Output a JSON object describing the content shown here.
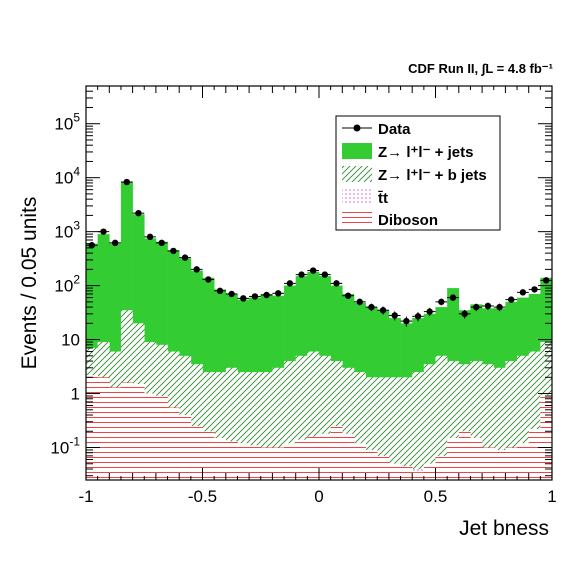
{
  "header": "CDF Run II, ∫L = 4.8 fb⁻¹",
  "chart_data": {
    "type": "area",
    "xlabel": "Jet bness",
    "ylabel": "Events / 0.05 units",
    "xlim": [
      -1,
      1
    ],
    "ylim": [
      0.025,
      500000
    ],
    "log_y": true,
    "grid": false,
    "legend_position": "top-right",
    "x_ticks": [
      {
        "value": -1,
        "label": "-1"
      },
      {
        "value": -0.5,
        "label": "-0.5"
      },
      {
        "value": 0,
        "label": "0"
      },
      {
        "value": 0.5,
        "label": "0.5"
      },
      {
        "value": 1,
        "label": "1"
      }
    ],
    "y_ticks": [
      {
        "value": 0.1,
        "base": "10",
        "exp": "-1"
      },
      {
        "value": 1,
        "base": "1",
        "exp": ""
      },
      {
        "value": 10,
        "base": "10",
        "exp": ""
      },
      {
        "value": 100,
        "base": "10",
        "exp": "2"
      },
      {
        "value": 1000,
        "base": "10",
        "exp": "3"
      },
      {
        "value": 10000,
        "base": "10",
        "exp": "4"
      },
      {
        "value": 100000,
        "base": "10",
        "exp": "5"
      }
    ],
    "bin_edges": [
      -1.0,
      -0.95,
      -0.9,
      -0.85,
      -0.8,
      -0.75,
      -0.7,
      -0.65,
      -0.6,
      -0.55,
      -0.5,
      -0.45,
      -0.4,
      -0.35,
      -0.3,
      -0.25,
      -0.2,
      -0.15,
      -0.1,
      -0.05,
      0.0,
      0.05,
      0.1,
      0.15,
      0.2,
      0.25,
      0.3,
      0.35,
      0.4,
      0.45,
      0.5,
      0.55,
      0.6,
      0.65,
      0.7,
      0.75,
      0.8,
      0.85,
      0.9,
      0.95,
      1.0
    ],
    "series": [
      {
        "name": "Data",
        "style": "points",
        "values": [
          560,
          1000,
          620,
          8300,
          2200,
          800,
          620,
          440,
          330,
          200,
          130,
          80,
          70,
          58,
          63,
          67,
          72,
          110,
          160,
          190,
          160,
          110,
          65,
          50,
          40,
          35,
          28,
          22,
          27,
          33,
          50,
          60,
          30,
          40,
          42,
          40,
          55,
          75,
          85,
          125
        ]
      },
      {
        "name": "Z→ l⁺l⁻ + jets",
        "style": "fill",
        "color": "#33cc33",
        "values": [
          600,
          900,
          600,
          8500,
          2100,
          750,
          650,
          450,
          320,
          190,
          140,
          85,
          70,
          55,
          60,
          70,
          65,
          100,
          150,
          180,
          150,
          100,
          70,
          48,
          40,
          35,
          25,
          20,
          25,
          30,
          40,
          90,
          35,
          45,
          38,
          38,
          50,
          60,
          70,
          140
        ]
      },
      {
        "name": "Z→ l⁺l⁻ + b jets",
        "style": "hatch-diagonal",
        "color": "#2e8b2e",
        "values": [
          7,
          9,
          6,
          35,
          20,
          9,
          8,
          6,
          5,
          3.5,
          2.5,
          2.5,
          3,
          2.5,
          2.5,
          2.5,
          3,
          4,
          5,
          6,
          5,
          4,
          3,
          2.5,
          2,
          2,
          2,
          2,
          2.5,
          3.5,
          5,
          4,
          3.5,
          4,
          3.5,
          3,
          4,
          5,
          6,
          9
        ]
      },
      {
        "name": "t̄t",
        "style": "hatch-dots",
        "color": "#dd66dd",
        "values": [
          1.7,
          1.9,
          1.2,
          1.4,
          1.1,
          0.7,
          0.55,
          0.45,
          0.35,
          0.22,
          0.18,
          0.14,
          0.12,
          0.11,
          0.1,
          0.09,
          0.09,
          0.1,
          0.12,
          0.14,
          0.16,
          0.18,
          0.13,
          0.09,
          0.07,
          0.06,
          0.05,
          0.04,
          0.04,
          0.05,
          0.06,
          0.07,
          0.06,
          0.06,
          0.06,
          0.07,
          0.08,
          0.1,
          0.15,
          0.5
        ]
      },
      {
        "name": "Diboson",
        "style": "hatch-horizontal",
        "color": "#ee4444",
        "values": [
          2.2,
          2.0,
          1.3,
          1.6,
          1.5,
          1.0,
          0.9,
          0.55,
          0.4,
          0.25,
          0.2,
          0.15,
          0.13,
          0.12,
          0.11,
          0.1,
          0.1,
          0.12,
          0.14,
          0.16,
          0.18,
          0.25,
          0.18,
          0.12,
          0.09,
          0.07,
          0.05,
          0.045,
          0.035,
          0.05,
          0.07,
          0.15,
          0.2,
          0.15,
          0.1,
          0.09,
          0.1,
          0.12,
          0.22,
          0.95
        ]
      }
    ]
  }
}
